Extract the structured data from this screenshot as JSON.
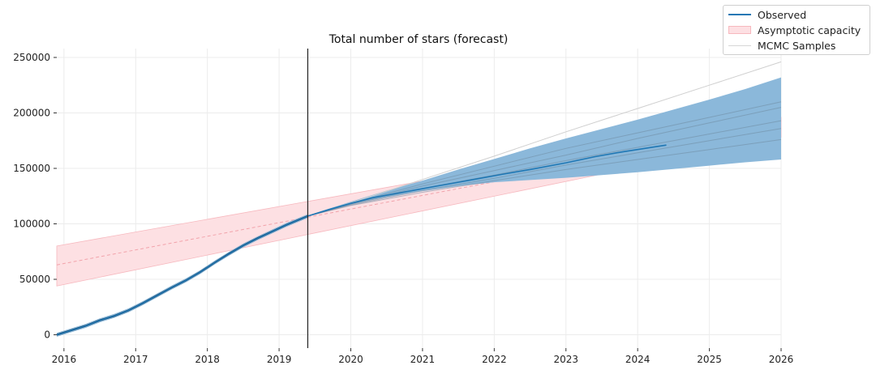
{
  "chart_data": {
    "type": "line",
    "title": "Total number of stars (forecast)",
    "xlabel": "",
    "ylabel": "",
    "xlim": [
      2015.9,
      2026.0
    ],
    "ylim": [
      -12000,
      258000
    ],
    "xticks": [
      2016,
      2017,
      2018,
      2019,
      2020,
      2021,
      2022,
      2023,
      2024,
      2025,
      2026
    ],
    "xtick_labels": [
      "2016",
      "2017",
      "2018",
      "2019",
      "2020",
      "2021",
      "2022",
      "2023",
      "2024",
      "2025",
      "2026"
    ],
    "yticks": [
      0,
      50000,
      100000,
      150000,
      200000,
      250000
    ],
    "ytick_labels": [
      "0",
      "50000",
      "100000",
      "150000",
      "200000",
      "250000"
    ],
    "grid": true,
    "forecast_start": 2019.4,
    "legend": {
      "placement": "top-right",
      "entries": [
        "Observed",
        "Asymptotic capacity",
        "MCMC Samples"
      ]
    },
    "colors": {
      "observed": "#1f77b4",
      "observed_dark": "#0b2a44",
      "forecast_band": "#8bb8da",
      "capacity_fill": "#fde0e3",
      "capacity_edge": "#f7b8be",
      "capacity_mid": "#f2a3ab",
      "mcmc": "#cfcfcf",
      "mcmc_inband": "#6f8aa0",
      "cutoff_line": "#222222",
      "grid": "#ececec"
    },
    "series": [
      {
        "name": "Observed",
        "x": [
          2015.9,
          2016.1,
          2016.3,
          2016.5,
          2016.7,
          2016.9,
          2017.1,
          2017.3,
          2017.5,
          2017.7,
          2017.9,
          2018.1,
          2018.3,
          2018.5,
          2018.7,
          2018.9,
          2019.1,
          2019.4,
          2019.7,
          2020.0,
          2020.3,
          2020.6,
          2020.9,
          2021.2,
          2021.5,
          2021.8,
          2022.1,
          2022.5,
          2023.0,
          2023.4,
          2023.8,
          2024.1,
          2024.4
        ],
        "values": [
          0,
          4000,
          8000,
          13000,
          17000,
          22000,
          28500,
          35500,
          42500,
          49000,
          56500,
          65000,
          73000,
          80500,
          87000,
          93000,
          99000,
          107000,
          113000,
          118500,
          123500,
          127000,
          130500,
          134000,
          137500,
          141000,
          144500,
          149000,
          155000,
          160500,
          165000,
          168000,
          171000
        ]
      },
      {
        "name": "Forecast band upper",
        "x": [
          2019.4,
          2020.0,
          2020.5,
          2021.0,
          2021.5,
          2022.0,
          2022.5,
          2023.0,
          2023.5,
          2024.0,
          2024.5,
          2025.0,
          2025.5,
          2026.0
        ],
        "values": [
          107500,
          120000,
          130000,
          139000,
          149000,
          158500,
          168000,
          177000,
          185500,
          194000,
          203000,
          212000,
          221500,
          232000
        ]
      },
      {
        "name": "Forecast band lower",
        "x": [
          2019.4,
          2020.0,
          2020.5,
          2021.0,
          2021.5,
          2022.0,
          2022.5,
          2023.0,
          2023.5,
          2024.0,
          2024.5,
          2025.0,
          2025.5,
          2026.0
        ],
        "values": [
          106500,
          117500,
          124000,
          129500,
          134000,
          137500,
          139500,
          141500,
          144000,
          146500,
          149500,
          152500,
          155500,
          158000
        ]
      },
      {
        "name": "Asymptotic capacity upper",
        "x": [
          2015.9,
          2026.0
        ],
        "values": [
          80000,
          196000
        ]
      },
      {
        "name": "Asymptotic capacity mid",
        "x": [
          2015.9,
          2026.0
        ],
        "values": [
          63000,
          187000
        ]
      },
      {
        "name": "Asymptotic capacity lower",
        "x": [
          2015.9,
          2026.0
        ],
        "values": [
          44000,
          178000
        ]
      },
      {
        "name": "MCMC Samples",
        "lines": [
          {
            "x": [
              2019.4,
              2020.0,
              2021.0,
              2022.0,
              2023.0,
              2024.0,
              2025.0,
              2026.0
            ],
            "values": [
              107000,
              119000,
              140000,
              161000,
              183000,
              204000,
              225000,
              246000
            ]
          },
          {
            "x": [
              2019.4,
              2020.0,
              2021.0,
              2022.0,
              2023.0,
              2024.0,
              2025.0,
              2026.0
            ],
            "values": [
              107000,
              118500,
              136000,
              152000,
              168000,
              182000,
              196000,
              210000
            ]
          },
          {
            "x": [
              2019.4,
              2020.0,
              2021.0,
              2022.0,
              2023.0,
              2024.0,
              2025.0,
              2026.0
            ],
            "values": [
              107000,
              118000,
              134000,
              148000,
              162000,
              177000,
              191000,
              205000
            ]
          },
          {
            "x": [
              2019.4,
              2020.0,
              2021.0,
              2022.0,
              2023.0,
              2024.0,
              2025.0,
              2026.0
            ],
            "values": [
              107000,
              117500,
              132000,
              144000,
              157000,
              169000,
              181000,
              193000
            ]
          },
          {
            "x": [
              2019.4,
              2020.0,
              2021.0,
              2022.0,
              2023.0,
              2024.0,
              2025.0,
              2026.0
            ],
            "values": [
              107000,
              117000,
              130000,
              141000,
              153000,
              164000,
              175000,
              186000
            ]
          },
          {
            "x": [
              2019.4,
              2020.0,
              2021.0,
              2022.0,
              2023.0,
              2024.0,
              2025.0,
              2026.0
            ],
            "values": [
              107000,
              116500,
              128500,
              139000,
              149000,
              158000,
              167000,
              176000
            ]
          }
        ]
      }
    ]
  }
}
